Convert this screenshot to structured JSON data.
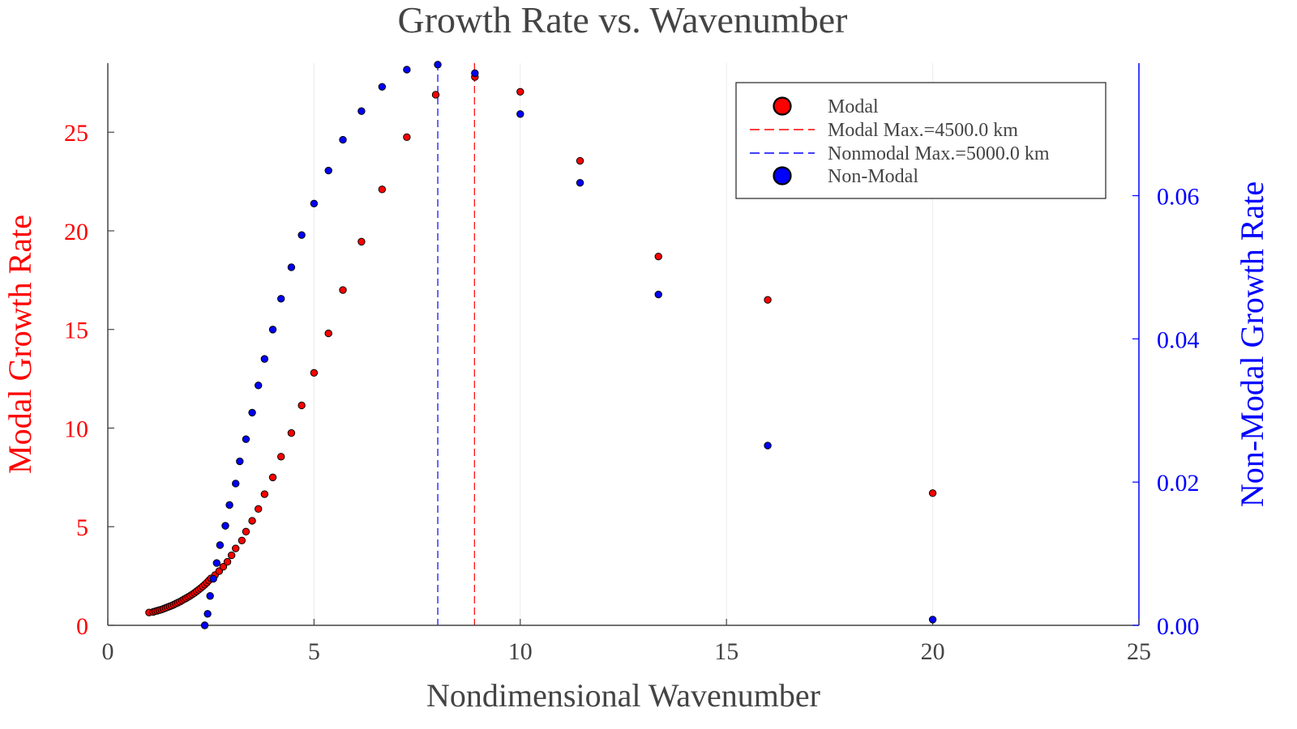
{
  "chart_data": {
    "type": "scatter",
    "title": "Growth Rate vs. Wavenumber",
    "xlabel": "Nondimensional Wavenumber",
    "ylabel_left": "Modal Growth Rate",
    "ylabel_right": "Non-Modal Growth Rate",
    "xlim": [
      0,
      25
    ],
    "ylim_left": [
      0,
      28.5
    ],
    "ylim_right": [
      0,
      0.0785
    ],
    "xticks": [
      0,
      5,
      10,
      15,
      20,
      25
    ],
    "xtick_labels": [
      "0",
      "5",
      "10",
      "15",
      "20",
      "25"
    ],
    "yticks_left": [
      0,
      5,
      10,
      15,
      20,
      25
    ],
    "ytick_labels_left": [
      "0",
      "5",
      "10",
      "15",
      "20",
      "25"
    ],
    "yticks_right": [
      0,
      0.02,
      0.04,
      0.06
    ],
    "ytick_labels_right": [
      "0.00",
      "0.02",
      "0.04",
      "0.06"
    ],
    "grid": true,
    "legend_position": "top-right",
    "colors": {
      "modal": "#ff0000",
      "nonmodal": "#0000ff",
      "text": "#444444"
    },
    "legend": [
      {
        "label": "Modal",
        "kind": "marker",
        "color": "#ff0000"
      },
      {
        "label": "Modal Max.=4500.0 km",
        "kind": "dashed-line",
        "color": "#ff0000"
      },
      {
        "label": "Nonmodal Max.=5000.0 km",
        "kind": "dashed-line",
        "color": "#0000ff"
      },
      {
        "label": "Non-Modal",
        "kind": "marker",
        "color": "#0000ff"
      }
    ],
    "vlines": [
      {
        "label": "Modal Max.=4500.0 km",
        "x": 8.89,
        "color": "#ff0000",
        "axis": "left"
      },
      {
        "label": "Nonmodal Max.=5000.0 km",
        "x": 8.0,
        "color": "#0000ff",
        "axis": "right"
      }
    ],
    "series": [
      {
        "name": "Modal",
        "axis": "left",
        "color": "#ff0000",
        "points": [
          [
            1.0,
            0.65
          ],
          [
            1.1,
            0.68
          ],
          [
            1.15,
            0.71
          ],
          [
            1.2,
            0.74
          ],
          [
            1.25,
            0.77
          ],
          [
            1.3,
            0.8
          ],
          [
            1.35,
            0.84
          ],
          [
            1.4,
            0.88
          ],
          [
            1.45,
            0.92
          ],
          [
            1.5,
            0.96
          ],
          [
            1.55,
            1.0
          ],
          [
            1.6,
            1.05
          ],
          [
            1.65,
            1.1
          ],
          [
            1.7,
            1.15
          ],
          [
            1.75,
            1.2
          ],
          [
            1.8,
            1.26
          ],
          [
            1.85,
            1.32
          ],
          [
            1.9,
            1.38
          ],
          [
            1.95,
            1.44
          ],
          [
            2.0,
            1.5
          ],
          [
            2.05,
            1.57
          ],
          [
            2.1,
            1.64
          ],
          [
            2.15,
            1.72
          ],
          [
            2.2,
            1.8
          ],
          [
            2.25,
            1.88
          ],
          [
            2.3,
            1.97
          ],
          [
            2.35,
            2.06
          ],
          [
            2.4,
            2.16
          ],
          [
            2.45,
            2.27
          ],
          [
            2.5,
            2.38
          ],
          [
            2.6,
            2.55
          ],
          [
            2.7,
            2.75
          ],
          [
            2.8,
            2.97
          ],
          [
            2.9,
            3.22
          ],
          [
            3.0,
            3.55
          ],
          [
            3.1,
            3.9
          ],
          [
            3.25,
            4.3
          ],
          [
            3.35,
            4.75
          ],
          [
            3.5,
            5.3
          ],
          [
            3.65,
            5.9
          ],
          [
            3.8,
            6.65
          ],
          [
            4.0,
            7.5
          ],
          [
            4.2,
            8.55
          ],
          [
            4.45,
            9.75
          ],
          [
            4.7,
            11.15
          ],
          [
            5.0,
            12.8
          ],
          [
            5.35,
            14.8
          ],
          [
            5.7,
            17.0
          ],
          [
            6.15,
            19.45
          ],
          [
            6.65,
            22.1
          ],
          [
            7.25,
            24.75
          ],
          [
            7.95,
            26.9
          ],
          [
            8.9,
            27.8
          ],
          [
            10.0,
            27.05
          ],
          [
            11.45,
            23.55
          ],
          [
            13.35,
            18.7
          ],
          [
            16.0,
            16.5
          ],
          [
            20.0,
            6.7
          ]
        ]
      },
      {
        "name": "Non-Modal",
        "axis": "right",
        "color": "#0000ff",
        "points": [
          [
            2.35,
            0.0
          ],
          [
            2.42,
            0.0016
          ],
          [
            2.48,
            0.0041
          ],
          [
            2.56,
            0.0065
          ],
          [
            2.64,
            0.0087
          ],
          [
            2.72,
            0.0112
          ],
          [
            2.85,
            0.0139
          ],
          [
            2.95,
            0.0168
          ],
          [
            3.1,
            0.0198
          ],
          [
            3.2,
            0.0229
          ],
          [
            3.35,
            0.026
          ],
          [
            3.5,
            0.0297
          ],
          [
            3.65,
            0.0335
          ],
          [
            3.8,
            0.0372
          ],
          [
            4.0,
            0.0413
          ],
          [
            4.2,
            0.0456
          ],
          [
            4.45,
            0.05
          ],
          [
            4.7,
            0.0545
          ],
          [
            5.0,
            0.0589
          ],
          [
            5.35,
            0.0635
          ],
          [
            5.7,
            0.0678
          ],
          [
            6.15,
            0.0718
          ],
          [
            6.65,
            0.0752
          ],
          [
            7.25,
            0.0776
          ],
          [
            8.0,
            0.0783
          ],
          [
            8.9,
            0.0771
          ],
          [
            10.0,
            0.0714
          ],
          [
            11.45,
            0.0618
          ],
          [
            13.35,
            0.0462
          ],
          [
            16.0,
            0.0251
          ],
          [
            20.0,
            0.0008
          ]
        ]
      }
    ]
  }
}
